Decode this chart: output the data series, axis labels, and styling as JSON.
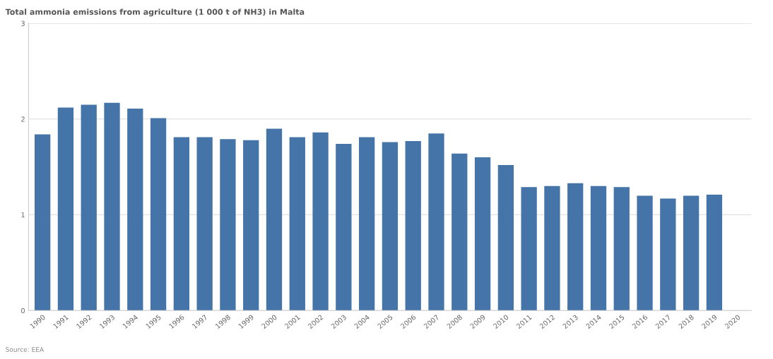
{
  "chart_data": {
    "type": "bar",
    "title": "Total ammonia emissions from agriculture (1 000 t of NH3) in Malta",
    "categories": [
      "1990",
      "1991",
      "1992",
      "1993",
      "1994",
      "1995",
      "1996",
      "1997",
      "1998",
      "1999",
      "2000",
      "2001",
      "2002",
      "2003",
      "2004",
      "2005",
      "2006",
      "2007",
      "2008",
      "2009",
      "2010",
      "2011",
      "2012",
      "2013",
      "2014",
      "2015",
      "2016",
      "2017",
      "2018",
      "2019",
      "2020"
    ],
    "values": [
      1.84,
      2.12,
      2.15,
      2.17,
      2.11,
      2.01,
      1.81,
      1.81,
      1.79,
      1.78,
      1.9,
      1.81,
      1.86,
      1.74,
      1.81,
      1.76,
      1.77,
      1.85,
      1.64,
      1.6,
      1.52,
      1.29,
      1.3,
      1.33,
      1.3,
      1.29,
      1.2,
      1.17,
      1.2,
      1.21,
      null
    ],
    "color": "#4575a8",
    "ylim": [
      0,
      3
    ],
    "yticks": [
      0,
      1,
      2,
      3
    ],
    "grid": "y",
    "annotations": [
      "Source: EEA"
    ]
  }
}
